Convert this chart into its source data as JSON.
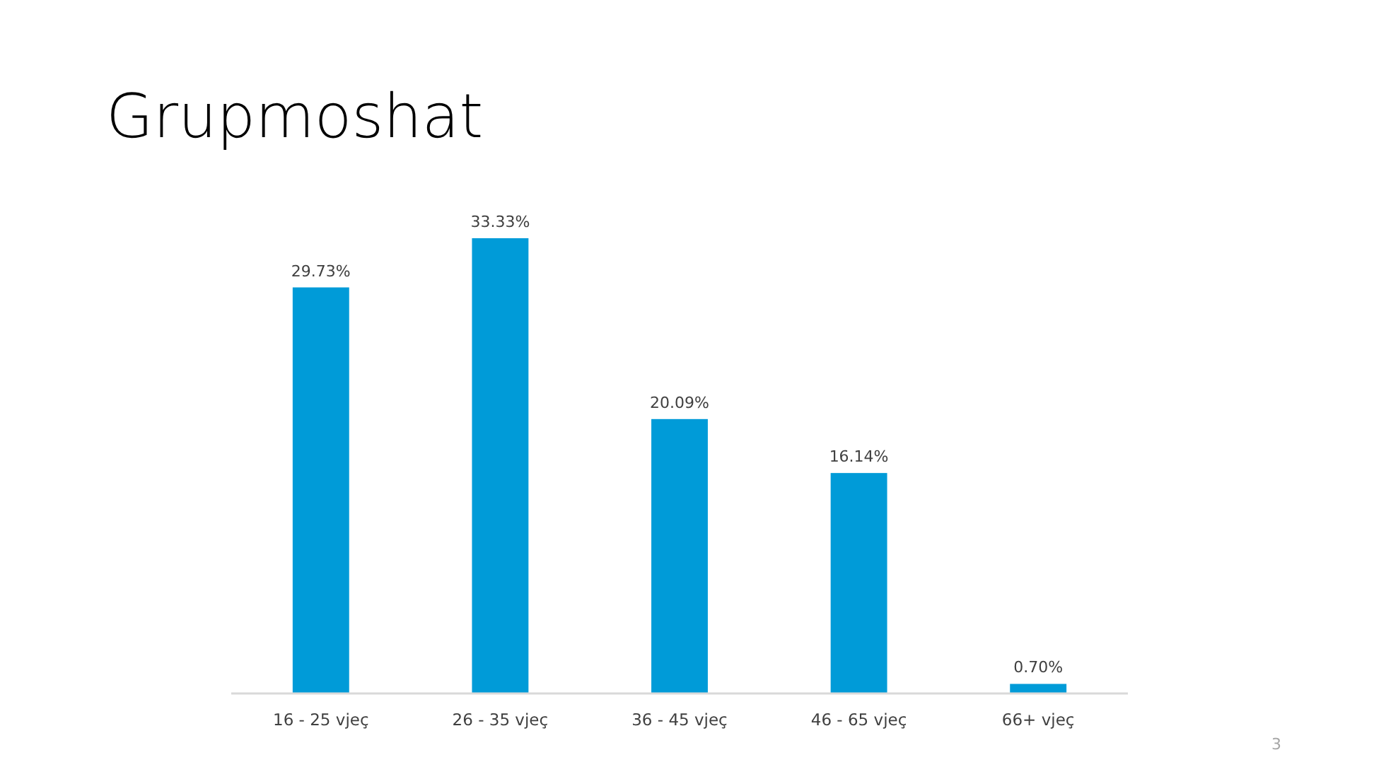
{
  "chart_data": {
    "type": "bar",
    "title": "Grupmoshat",
    "categories": [
      "16 - 25 vjeç",
      "26 - 35 vjeç",
      "36 - 45 vjeç",
      "46 - 65 vjeç",
      "66+ vjeç"
    ],
    "values": [
      29.73,
      33.33,
      20.09,
      16.14,
      0.7
    ],
    "value_labels": [
      "29.73%",
      "33.33%",
      "20.09%",
      "16.14%",
      "0.70%"
    ],
    "color": "#009bd8",
    "annotations": [
      "3"
    ]
  }
}
